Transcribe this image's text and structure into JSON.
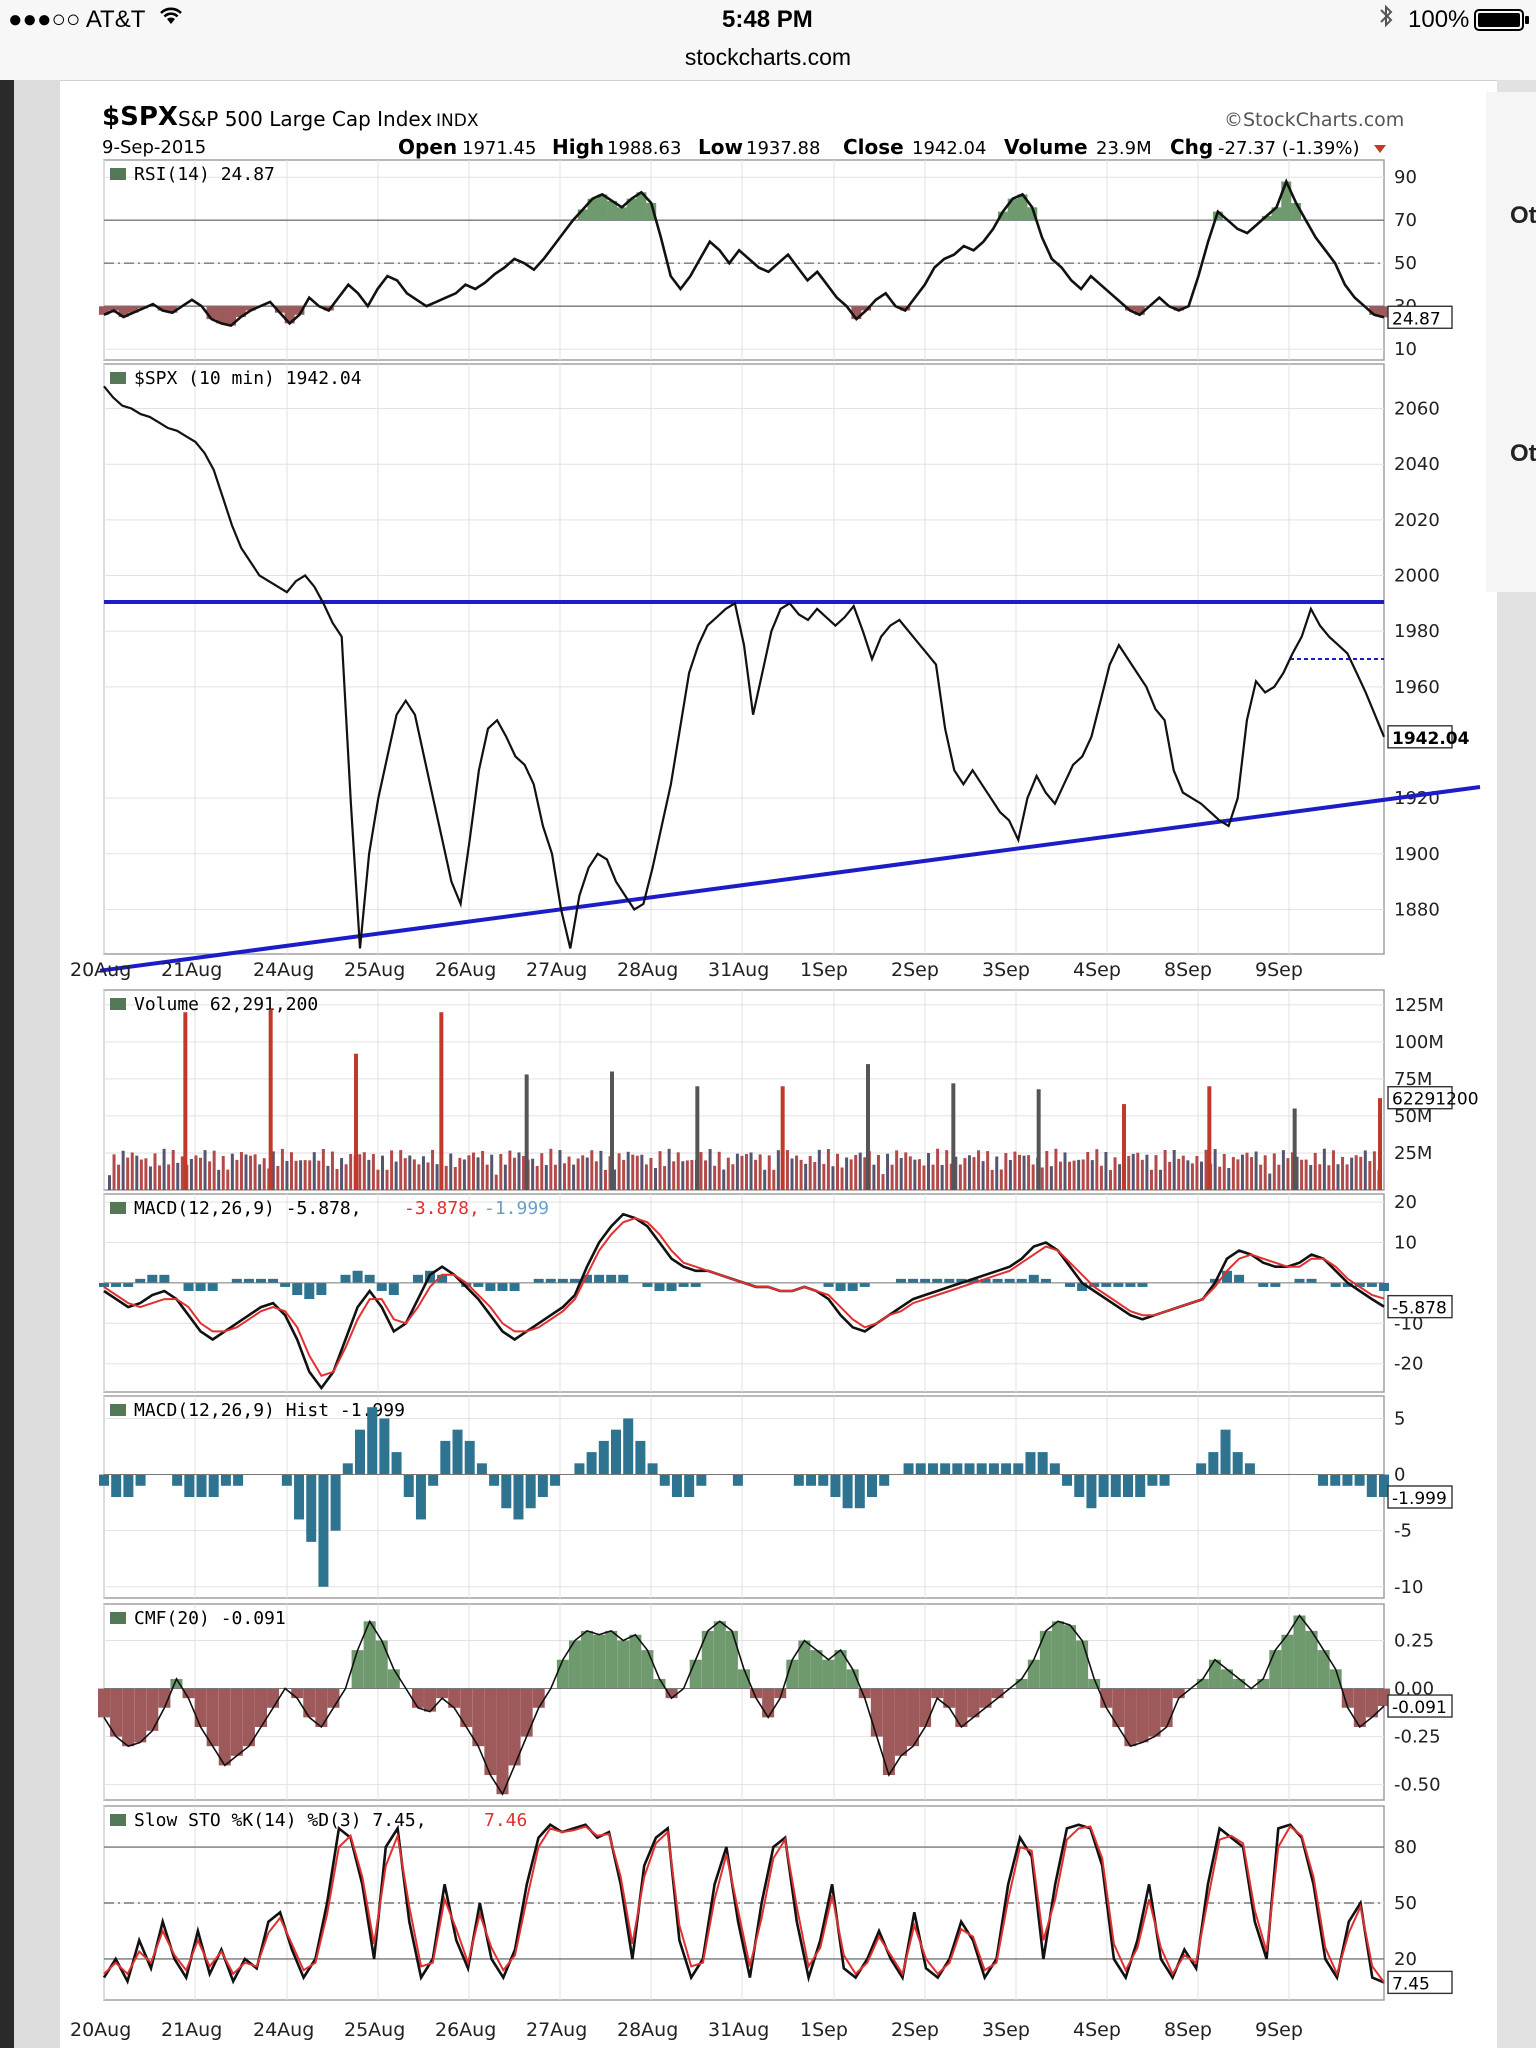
{
  "status": {
    "carrier": "●●●○○ AT&T",
    "time": "5:48 PM",
    "battery": "100%",
    "wifi_icon": "wifi-icon",
    "bluetooth_icon": "bluetooth-icon"
  },
  "browser": {
    "url": "stockcharts.com"
  },
  "side": {
    "label1": "Ot",
    "label2": "Ot"
  },
  "header": {
    "symbol": "$SPX",
    "name": "S&P 500 Large Cap Index",
    "exchange": "INDX",
    "date": "9-Sep-2015",
    "brand": "©StockCharts.com",
    "open_label": "Open",
    "open": "1971.45",
    "high_label": "High",
    "high": "1988.63",
    "low_label": "Low",
    "low": "1937.88",
    "close_label": "Close",
    "close": "1942.04",
    "volume_label": "Volume",
    "volume": "23.9M",
    "chg_label": "Chg",
    "chg": "-27.37 (-1.39%)",
    "chg_icon": "down-triangle-icon",
    "colors": {
      "up": "#5a8a5a",
      "down": "#c0392b",
      "trend": "#1d1dc8"
    }
  },
  "chart_data": [
    {
      "type": "line",
      "panel": "rsi",
      "legend": "RSI(14) 24.87",
      "yticks": [
        90,
        70,
        50,
        30,
        10
      ],
      "ylim": [
        5,
        98
      ],
      "reference_lines": [
        70,
        50,
        30
      ],
      "last_value": "24.87",
      "last": 24.87,
      "points": [
        26,
        28,
        25,
        27,
        29,
        31,
        28,
        27,
        30,
        33,
        30,
        24,
        22,
        21,
        25,
        28,
        30,
        32,
        27,
        22,
        26,
        34,
        30,
        28,
        34,
        40,
        36,
        30,
        38,
        44,
        42,
        36,
        33,
        30,
        32,
        34,
        36,
        40,
        38,
        41,
        45,
        48,
        52,
        50,
        47,
        52,
        58,
        64,
        70,
        75,
        80,
        82,
        79,
        76,
        80,
        83,
        78,
        62,
        44,
        38,
        44,
        52,
        60,
        56,
        50,
        56,
        52,
        48,
        46,
        50,
        54,
        48,
        42,
        46,
        40,
        34,
        30,
        24,
        28,
        33,
        36,
        30,
        28,
        34,
        40,
        48,
        52,
        54,
        58,
        56,
        60,
        66,
        74,
        80,
        82,
        76,
        62,
        52,
        48,
        42,
        38,
        44,
        40,
        36,
        32,
        28,
        26,
        30,
        34,
        30,
        28,
        30,
        44,
        60,
        74,
        70,
        66,
        64,
        68,
        72,
        76,
        88,
        78,
        70,
        62,
        56,
        50,
        40,
        34,
        30,
        26,
        24.87
      ],
      "xlabels": []
    },
    {
      "type": "line",
      "panel": "price",
      "legend": "$SPX (10 min) 1942.04",
      "legend_icon": "ohlc-bars-icon",
      "yticks": [
        2060,
        2040,
        2020,
        2000,
        1980,
        1960,
        1920,
        1900,
        1880
      ],
      "ylim": [
        1864,
        2076
      ],
      "last_value": "1942.04",
      "last": 1942.04,
      "resistance": 1990.5,
      "trendline": {
        "from": [
          0,
          1858
        ],
        "to": [
          1,
          1924
        ]
      },
      "dashed_level": 1970,
      "xlabels": [
        "20Aug",
        "21Aug",
        "24Aug",
        "25Aug",
        "26Aug",
        "27Aug",
        "28Aug",
        "31Aug",
        "1Sep",
        "2Sep",
        "3Sep",
        "4Sep",
        "8Sep",
        "9Sep"
      ],
      "points": [
        2068,
        2064,
        2061,
        2060,
        2058,
        2057,
        2055,
        2053,
        2052,
        2050,
        2048,
        2044,
        2038,
        2028,
        2018,
        2010,
        2005,
        2000,
        1998,
        1996,
        1994,
        1998,
        2000,
        1996,
        1990,
        1983,
        1978,
        1918,
        1866,
        1900,
        1920,
        1935,
        1950,
        1955,
        1950,
        1935,
        1920,
        1905,
        1890,
        1882,
        1905,
        1930,
        1945,
        1948,
        1942,
        1935,
        1932,
        1925,
        1910,
        1900,
        1880,
        1866,
        1885,
        1895,
        1900,
        1898,
        1890,
        1885,
        1880,
        1882,
        1895,
        1910,
        1925,
        1945,
        1965,
        1975,
        1982,
        1985,
        1988,
        1990,
        1975,
        1950,
        1965,
        1980,
        1988,
        1990,
        1986,
        1984,
        1988,
        1985,
        1982,
        1985,
        1989,
        1980,
        1970,
        1978,
        1982,
        1984,
        1980,
        1976,
        1972,
        1968,
        1945,
        1930,
        1925,
        1930,
        1925,
        1920,
        1915,
        1912,
        1905,
        1920,
        1928,
        1922,
        1918,
        1925,
        1932,
        1935,
        1942,
        1955,
        1968,
        1975,
        1970,
        1965,
        1960,
        1952,
        1948,
        1930,
        1922,
        1920,
        1918,
        1915,
        1912,
        1910,
        1920,
        1948,
        1962,
        1958,
        1960,
        1965,
        1972,
        1978,
        1988,
        1982,
        1978,
        1975,
        1972,
        1965,
        1958,
        1950,
        1942.04
      ]
    },
    {
      "type": "bar",
      "panel": "volume",
      "legend": "Volume 62,291,200",
      "yticks": [
        "125M",
        "100M",
        "75M",
        "50M",
        "25M"
      ],
      "ytick_values": [
        125,
        100,
        75,
        50,
        25
      ],
      "ylim": [
        0,
        135
      ],
      "last_value": "62291200",
      "last": 62.29,
      "spike_days": [
        {
          "x": 0.1,
          "value": 120,
          "color": "#c0392b"
        },
        {
          "x": 0.2,
          "value": 122,
          "color": "#c0392b"
        },
        {
          "x": 0.3,
          "value": 92,
          "color": "#c0392b"
        },
        {
          "x": 0.4,
          "value": 120,
          "color": "#c0392b"
        },
        {
          "x": 0.5,
          "value": 78,
          "color": "#555"
        },
        {
          "x": 0.6,
          "value": 80,
          "color": "#555"
        },
        {
          "x": 0.7,
          "value": 70,
          "color": "#555"
        },
        {
          "x": 0.8,
          "value": 70,
          "color": "#c0392b"
        },
        {
          "x": 0.9,
          "value": 85,
          "color": "#555"
        },
        {
          "x": 1.0,
          "value": 72,
          "color": "#555"
        },
        {
          "x": 1.1,
          "value": 68,
          "color": "#555"
        },
        {
          "x": 1.2,
          "value": 58,
          "color": "#c0392b"
        },
        {
          "x": 1.3,
          "value": 70,
          "color": "#c0392b"
        },
        {
          "x": 1.4,
          "value": 55,
          "color": "#555"
        },
        {
          "x": 1.5,
          "value": 62,
          "color": "#c0392b"
        }
      ]
    },
    {
      "type": "line",
      "panel": "macd",
      "legend": "MACD(12,26,9) -5.878,",
      "legend_signal": "-3.878,",
      "legend_hist": "-1.999",
      "yticks": [
        20,
        10,
        -10,
        -20
      ],
      "ylim": [
        -27,
        22
      ],
      "last_value": "-5.878",
      "last": -5.878,
      "points": [
        -2,
        -4,
        -6,
        -5,
        -3,
        -2,
        -4,
        -8,
        -12,
        -14,
        -12,
        -10,
        -8,
        -6,
        -5,
        -8,
        -14,
        -22,
        -26,
        -22,
        -14,
        -6,
        -2,
        -6,
        -12,
        -10,
        -4,
        2,
        4,
        2,
        -1,
        -4,
        -8,
        -12,
        -14,
        -12,
        -10,
        -8,
        -6,
        -3,
        4,
        10,
        14,
        17,
        16,
        14,
        10,
        6,
        4,
        3,
        3,
        2,
        1,
        0,
        -1,
        -1,
        -2,
        -2,
        -1,
        -2,
        -4,
        -8,
        -11,
        -12,
        -10,
        -8,
        -6,
        -4,
        -3,
        -2,
        -1,
        0,
        1,
        2,
        3,
        4,
        6,
        9,
        10,
        8,
        4,
        0,
        -2,
        -4,
        -6,
        -8,
        -9,
        -8,
        -7,
        -6,
        -5,
        -4,
        0,
        6,
        8,
        7,
        5,
        4,
        4,
        5,
        7,
        6,
        3,
        0,
        -2,
        -4,
        -5.878
      ],
      "signal_points": [
        -1,
        -3,
        -5,
        -6,
        -5,
        -4,
        -4,
        -6,
        -10,
        -12,
        -12,
        -11,
        -9,
        -7,
        -6,
        -7,
        -11,
        -18,
        -23,
        -22,
        -16,
        -9,
        -4,
        -4,
        -9,
        -10,
        -6,
        -1,
        2,
        2,
        0,
        -3,
        -6,
        -10,
        -12,
        -12,
        -11,
        -9,
        -7,
        -4,
        2,
        8,
        12,
        15,
        16,
        15,
        12,
        8,
        5,
        4,
        3,
        2,
        1,
        0,
        -1,
        -1,
        -2,
        -2,
        -1,
        -2,
        -3,
        -6,
        -9,
        -11,
        -10,
        -8,
        -7,
        -5,
        -4,
        -3,
        -2,
        -1,
        0,
        1,
        2,
        3,
        5,
        7,
        9,
        8,
        5,
        2,
        -1,
        -3,
        -5,
        -7,
        -8,
        -8,
        -7,
        -6,
        -5,
        -4,
        -1,
        3,
        6,
        7,
        6,
        5,
        4,
        4,
        6,
        6,
        4,
        1,
        -1,
        -3,
        -3.878
      ]
    },
    {
      "type": "bar",
      "panel": "hist",
      "legend": "MACD(12,26,9) Hist -1.999",
      "legend_icon": "histogram-icon",
      "yticks": [
        5,
        0,
        -5,
        -10
      ],
      "ylim": [
        -11,
        7
      ],
      "last_value": "-1.999",
      "last": -1.999,
      "points": [
        -1,
        -2,
        -2,
        -1,
        0,
        0,
        -1,
        -2,
        -2,
        -2,
        -1,
        -1,
        0,
        0,
        0,
        -1,
        -4,
        -6,
        -10,
        -5,
        1,
        4,
        6,
        5,
        2,
        -2,
        -4,
        -1,
        3,
        4,
        3,
        1,
        -1,
        -3,
        -4,
        -3,
        -2,
        -1,
        0,
        1,
        2,
        3,
        4,
        5,
        3,
        1,
        -1,
        -2,
        -2,
        -1,
        0,
        0,
        -1,
        0,
        0,
        0,
        0,
        -1,
        -1,
        -1,
        -2,
        -3,
        -3,
        -2,
        -1,
        0,
        1,
        1,
        1,
        1,
        1,
        1,
        1,
        1,
        1,
        1,
        2,
        2,
        1,
        -1,
        -2,
        -3,
        -2,
        -2,
        -2,
        -2,
        -1,
        -1,
        0,
        0,
        1,
        2,
        4,
        2,
        1,
        0,
        0,
        0,
        0,
        0,
        -1,
        -1,
        -1,
        -1,
        -2,
        -1.999
      ]
    },
    {
      "type": "area",
      "panel": "cmf",
      "legend": "CMF(20) -0.091",
      "legend_icon": "area-icon",
      "yticks": [
        "0.25",
        "0.00",
        "-0.25",
        "-0.50"
      ],
      "ytick_values": [
        0.25,
        0.0,
        -0.25,
        -0.5
      ],
      "ylim": [
        -0.58,
        0.44
      ],
      "last_value": "-0.091",
      "last": -0.091,
      "points": [
        -0.15,
        -0.25,
        -0.3,
        -0.28,
        -0.22,
        -0.1,
        0.05,
        -0.05,
        -0.2,
        -0.3,
        -0.4,
        -0.35,
        -0.3,
        -0.2,
        -0.1,
        0.0,
        -0.05,
        -0.15,
        -0.2,
        -0.1,
        0.0,
        0.2,
        0.35,
        0.25,
        0.1,
        0.0,
        -0.1,
        -0.12,
        -0.05,
        -0.1,
        -0.2,
        -0.3,
        -0.45,
        -0.55,
        -0.4,
        -0.25,
        -0.1,
        0.0,
        0.15,
        0.25,
        0.3,
        0.28,
        0.3,
        0.25,
        0.28,
        0.2,
        0.05,
        -0.05,
        0.0,
        0.15,
        0.3,
        0.35,
        0.3,
        0.1,
        -0.05,
        -0.15,
        -0.05,
        0.15,
        0.25,
        0.2,
        0.15,
        0.2,
        0.1,
        -0.05,
        -0.25,
        -0.45,
        -0.35,
        -0.3,
        -0.2,
        -0.05,
        -0.1,
        -0.2,
        -0.15,
        -0.1,
        -0.05,
        0.0,
        0.05,
        0.15,
        0.3,
        0.35,
        0.33,
        0.25,
        0.05,
        -0.1,
        -0.2,
        -0.3,
        -0.28,
        -0.25,
        -0.2,
        -0.05,
        0.0,
        0.05,
        0.15,
        0.1,
        0.05,
        0.0,
        0.05,
        0.2,
        0.28,
        0.38,
        0.3,
        0.2,
        0.1,
        -0.1,
        -0.2,
        -0.15,
        -0.091
      ],
      "colors": {
        "positive": "#6e9a6e",
        "negative": "#9e5a5a"
      }
    },
    {
      "type": "line",
      "panel": "sto",
      "legend": "Slow STO %K(14) %D(3) 7.45,",
      "legend_d": "7.46",
      "yticks": [
        80,
        50,
        20
      ],
      "ylim": [
        -2,
        102
      ],
      "reference_lines": [
        80,
        50,
        20
      ],
      "last_value": "7.45",
      "last": 7.45,
      "xlabels": [
        "20Aug",
        "21Aug",
        "24Aug",
        "25Aug",
        "26Aug",
        "27Aug",
        "28Aug",
        "31Aug",
        "1Sep",
        "2Sep",
        "3Sep",
        "4Sep",
        "8Sep",
        "9Sep"
      ],
      "points": [
        10,
        20,
        8,
        30,
        15,
        40,
        20,
        10,
        35,
        12,
        25,
        8,
        20,
        15,
        40,
        45,
        25,
        10,
        20,
        50,
        90,
        85,
        60,
        20,
        80,
        90,
        40,
        10,
        20,
        60,
        30,
        15,
        50,
        20,
        10,
        25,
        60,
        85,
        92,
        88,
        90,
        92,
        85,
        88,
        60,
        20,
        70,
        85,
        90,
        30,
        10,
        20,
        60,
        80,
        40,
        10,
        50,
        80,
        85,
        40,
        10,
        30,
        60,
        15,
        10,
        20,
        35,
        20,
        10,
        45,
        15,
        10,
        20,
        40,
        30,
        10,
        20,
        60,
        85,
        75,
        20,
        60,
        90,
        92,
        90,
        70,
        20,
        10,
        30,
        60,
        20,
        10,
        25,
        15,
        60,
        90,
        85,
        80,
        40,
        20,
        90,
        92,
        85,
        60,
        20,
        10,
        40,
        50,
        10,
        7.45
      ],
      "signal_points": [
        12,
        18,
        12,
        24,
        18,
        35,
        22,
        14,
        30,
        16,
        24,
        12,
        18,
        16,
        34,
        42,
        28,
        14,
        18,
        44,
        80,
        86,
        64,
        28,
        70,
        86,
        48,
        16,
        18,
        52,
        36,
        18,
        44,
        26,
        14,
        22,
        52,
        80,
        90,
        88,
        89,
        91,
        86,
        87,
        64,
        28,
        64,
        82,
        88,
        38,
        16,
        18,
        52,
        76,
        46,
        16,
        42,
        74,
        84,
        48,
        16,
        26,
        54,
        22,
        12,
        18,
        32,
        22,
        12,
        38,
        20,
        12,
        18,
        36,
        32,
        14,
        18,
        52,
        80,
        78,
        30,
        52,
        84,
        90,
        91,
        74,
        28,
        14,
        26,
        52,
        26,
        12,
        22,
        18,
        52,
        84,
        86,
        82,
        46,
        24,
        80,
        91,
        86,
        64,
        26,
        12,
        34,
        48,
        16,
        7.46
      ]
    }
  ]
}
